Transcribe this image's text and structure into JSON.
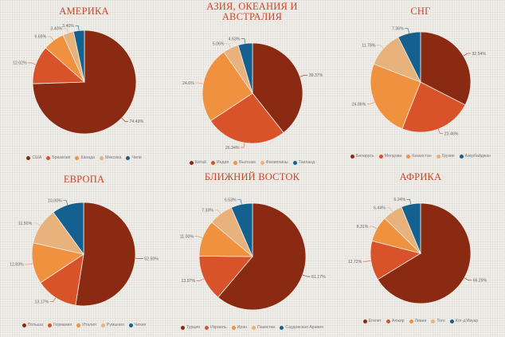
{
  "colors": [
    "#8b2a12",
    "#d9532a",
    "#f0913f",
    "#e8b27d",
    "#14618f"
  ],
  "chart_data": [
    {
      "type": "pie",
      "title": "АМЕРИКА",
      "labels": [
        "США",
        "Бразилия",
        "Канада",
        "Мексика",
        "Чили"
      ],
      "values": [
        74.49,
        12.02,
        6.69,
        3.4,
        3.4
      ],
      "value_labels": [
        "74.49%",
        "12.02%",
        "6.69%",
        "3.40%",
        "3.40%"
      ]
    },
    {
      "type": "pie",
      "title": "АЗИЯ, ОКЕАНИЯ И АВСТРАЛИЯ",
      "labels": [
        "Китай",
        "Индия",
        "Вьетнам",
        "Филиппины",
        "Таиланд"
      ],
      "values": [
        39.37,
        26.34,
        24.6,
        5.06,
        4.63
      ],
      "value_labels": [
        "39.37%",
        "26.34%",
        "24.6%",
        "5.06%",
        "4.63%"
      ]
    },
    {
      "type": "pie",
      "title": "СНГ",
      "labels": [
        "Беларусь",
        "Молдова",
        "Казахстан",
        "Грузия",
        "Азербайджан"
      ],
      "values": [
        32.54,
        23.46,
        24.86,
        11.78,
        7.36
      ],
      "value_labels": [
        "32.54%",
        "23.46%",
        "24.86%",
        "11.78%",
        "7.36%"
      ]
    },
    {
      "type": "pie",
      "title": "ЕВРОПА",
      "labels": [
        "Польша",
        "Германия",
        "Италия",
        "Румыния",
        "Чехия"
      ],
      "values": [
        52.5,
        13.17,
        12.83,
        11.5,
        10.0
      ],
      "value_labels": [
        "52.50%",
        "13.17%",
        "12.83%",
        "11.50%",
        "10.00%"
      ]
    },
    {
      "type": "pie",
      "title": "БЛИЖНИЙ ВОСТОК",
      "labels": [
        "Турция",
        "Израиль",
        "Иран",
        "Пакистан",
        "Саудовская Аравия"
      ],
      "values": [
        61.17,
        13.97,
        11.0,
        7.33,
        6.53
      ],
      "value_labels": [
        "61.17%",
        "13.97%",
        "11.00%",
        "7.33%",
        "6.53%"
      ]
    },
    {
      "type": "pie",
      "title": "АФРИКА",
      "labels": [
        "Египет",
        "Алжир",
        "Ливия",
        "Того",
        "Кот-д'Ивуар"
      ],
      "values": [
        66.29,
        12.72,
        8.31,
        6.44,
        6.24
      ],
      "value_labels": [
        "66.29%",
        "12.72%",
        "8.31%",
        "6.44%",
        "6.24%"
      ]
    }
  ]
}
